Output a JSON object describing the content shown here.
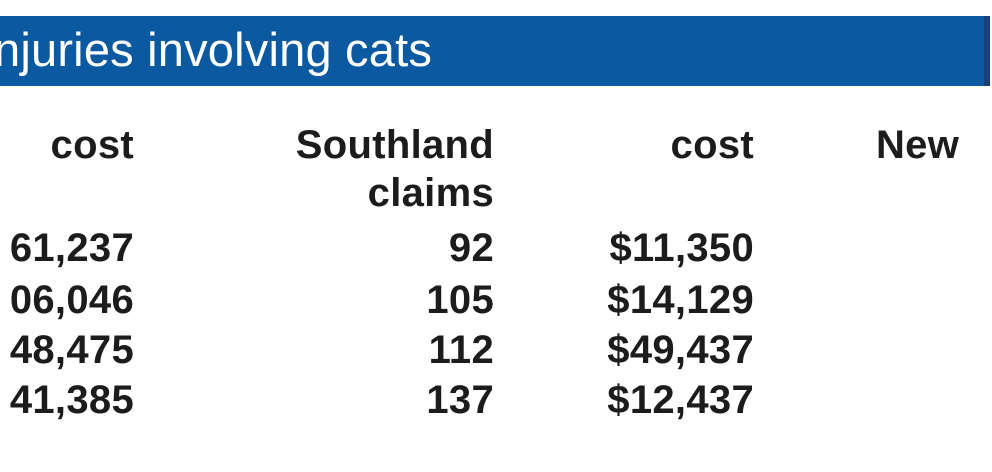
{
  "banner": {
    "title": "njuries involving cats"
  },
  "table": {
    "headers": {
      "col1": "cost",
      "col2_line1": "Southland",
      "col2_line2": "claims",
      "col3": "cost",
      "col4": "New"
    },
    "rows": [
      {
        "c1": "61,237",
        "c2": "92",
        "c3": "$11,350"
      },
      {
        "c1": "06,046",
        "c2": "105",
        "c3": "$14,129"
      },
      {
        "c1": "48,475",
        "c2": "112",
        "c3": "$49,437"
      },
      {
        "c1": "41,385",
        "c2": "137",
        "c3": "$12,437"
      }
    ]
  }
}
